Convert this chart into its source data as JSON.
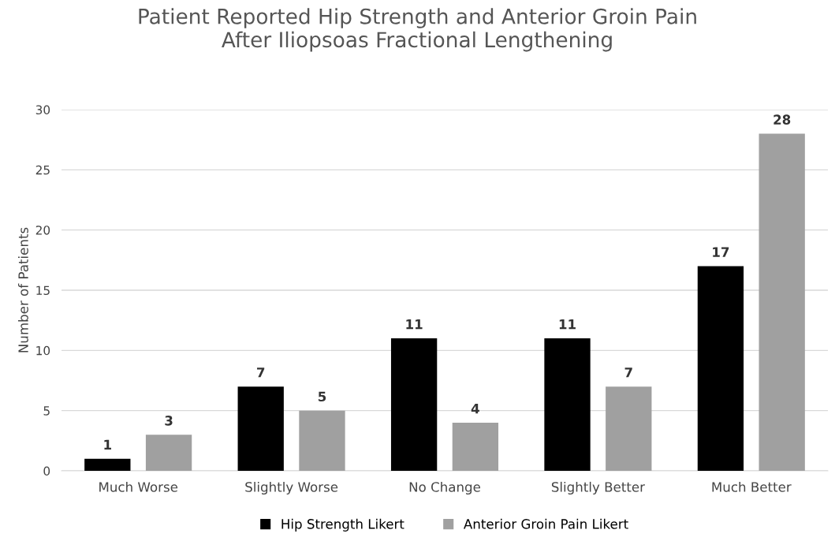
{
  "chart_data": {
    "type": "bar",
    "title": "Patient Reported Hip Strength and Anterior Groin Pain\nAfter Iliopsoas Fractional Lengthening",
    "ylabel": "Number of Patients",
    "categories": [
      "Much Worse",
      "Slightly Worse",
      "No Change",
      "Slightly Better",
      "Much Better"
    ],
    "series": [
      {
        "name": "Hip Strength Likert",
        "color": "#000000",
        "values": [
          1,
          7,
          11,
          11,
          17
        ]
      },
      {
        "name": "Anterior Groin Pain Likert",
        "color": "#a0a0a0",
        "values": [
          3,
          5,
          4,
          7,
          28
        ]
      }
    ],
    "ylim": [
      0,
      30
    ],
    "yticks": [
      0,
      5,
      10,
      15,
      20,
      25,
      30
    ],
    "grid": "y",
    "legend": "bottom",
    "data_labels": true
  }
}
